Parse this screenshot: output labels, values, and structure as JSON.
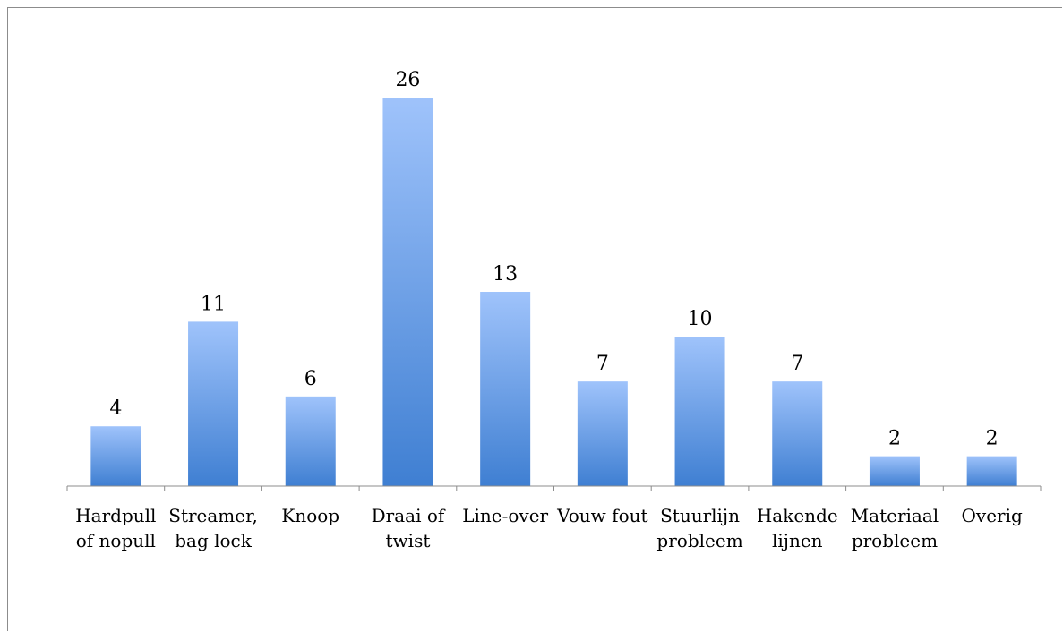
{
  "chart_data": {
    "type": "bar",
    "categories": [
      [
        "Hardpull",
        "of nopull"
      ],
      [
        "Streamer,",
        "bag lock"
      ],
      [
        "Knoop"
      ],
      [
        "Draai of",
        "twist"
      ],
      [
        "Line-over"
      ],
      [
        "Vouw fout"
      ],
      [
        "Stuurlijn",
        "probleem"
      ],
      [
        "Hakende",
        "lijnen"
      ],
      [
        "Materiaal",
        "probleem"
      ],
      [
        "Overig"
      ]
    ],
    "values": [
      4,
      11,
      6,
      26,
      13,
      7,
      10,
      7,
      2,
      2
    ],
    "data_labels": [
      "4",
      "11",
      "6",
      "26",
      "13",
      "7",
      "10",
      "7",
      "2",
      "2"
    ],
    "title": "",
    "xlabel": "",
    "ylabel": "",
    "ylim": [
      0,
      26
    ],
    "grid": false,
    "legend": "none",
    "colors": {
      "bar_top": "#9fc3fb",
      "bar_bottom": "#3f7fd2",
      "axis": "#8c8c8c"
    }
  }
}
